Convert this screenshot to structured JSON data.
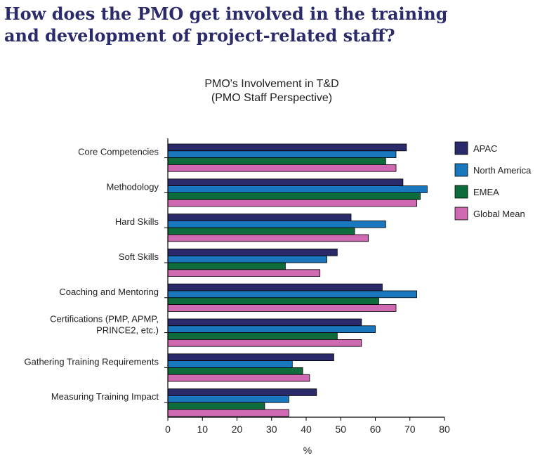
{
  "page": {
    "heading_line1": "How does the PMO get involved in the training",
    "heading_line2": "and development of project-related staff?",
    "heading_color": "#2b2b6b"
  },
  "chart_data": {
    "type": "bar",
    "orientation": "horizontal",
    "title": "PMO's Involvement in T&D",
    "subtitle": "(PMO Staff Perspective)",
    "xlabel": "%",
    "ylabel": "",
    "xlim": [
      0,
      80
    ],
    "xticks": [
      0,
      10,
      20,
      30,
      40,
      50,
      60,
      70,
      80
    ],
    "grid": false,
    "legend_position": "right",
    "categories": [
      [
        "Core Competencies"
      ],
      [
        "Methodology"
      ],
      [
        "Hard Skills"
      ],
      [
        "Soft Skills"
      ],
      [
        "Coaching and Mentoring"
      ],
      [
        "Certifications (PMP, APMP,",
        "PRINCE2, etc.)"
      ],
      [
        "Gathering Training Requirements"
      ],
      [
        "Measuring Training Impact"
      ]
    ],
    "series": [
      {
        "name": "APAC",
        "color": "#2a2a6a",
        "values": [
          69,
          68,
          53,
          49,
          62,
          56,
          48,
          43
        ]
      },
      {
        "name": "North America",
        "color": "#1a77bd",
        "values": [
          66,
          75,
          63,
          46,
          72,
          60,
          36,
          35
        ]
      },
      {
        "name": "EMEA",
        "color": "#0e6b3c",
        "values": [
          63,
          73,
          54,
          34,
          61,
          49,
          39,
          28
        ]
      },
      {
        "name": "Global Mean",
        "color": "#cf69b1",
        "values": [
          66,
          72,
          58,
          44,
          66,
          56,
          41,
          35
        ]
      }
    ]
  }
}
